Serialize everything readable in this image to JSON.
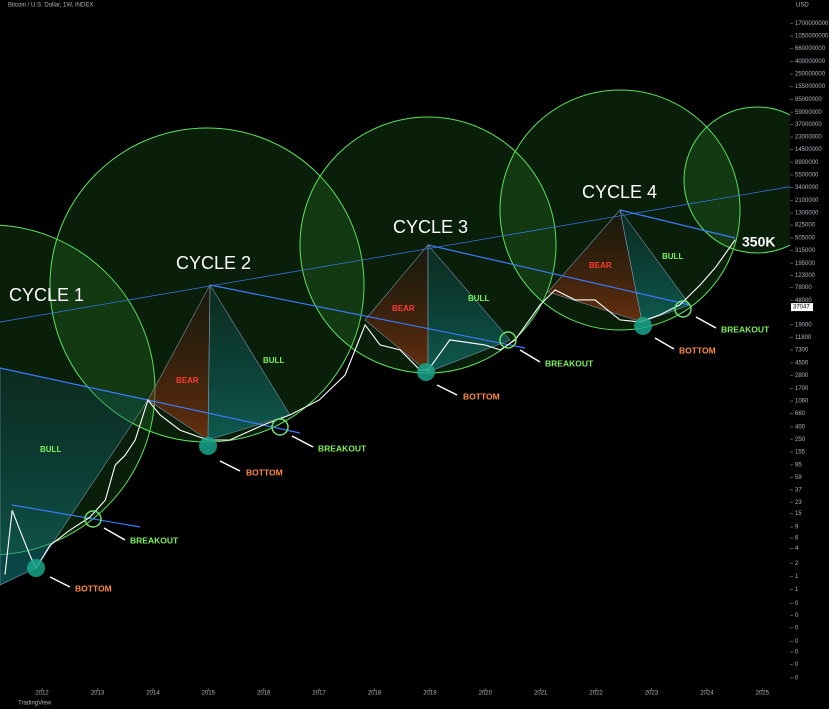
{
  "chart_data": {
    "type": "line",
    "log_scale": true,
    "currency": "USD",
    "xlim": [
      2011.24,
      2025.5
    ],
    "xticks": [
      2012,
      2013,
      2014,
      2015,
      2016,
      2017,
      2018,
      2019,
      2020,
      2021,
      2022,
      2023,
      2024,
      2025
    ],
    "ylim": [
      0.019,
      3400000000
    ],
    "yticks": [
      1700000000,
      1050000000,
      660000000,
      400000000,
      250000000,
      155000000,
      95000000,
      59000000,
      37000000,
      23000000,
      14500000,
      8900000,
      5500000,
      3400000,
      2100000,
      1300000,
      825000,
      505000,
      315000,
      195000,
      123000,
      78000,
      48000,
      19000,
      11800,
      7300,
      4500,
      2800,
      1700,
      1060,
      660,
      400,
      250,
      155,
      95,
      59,
      37,
      23,
      15,
      9,
      6,
      4,
      {
        "value": 2.3,
        "label": "2"
      },
      {
        "value": 1.4,
        "label": "1"
      },
      {
        "value": 0.85,
        "label": "1"
      },
      {
        "value": 0.5,
        "label": "0"
      },
      {
        "value": 0.32,
        "label": "0"
      },
      {
        "value": 0.2,
        "label": "0"
      },
      {
        "value": 0.12,
        "label": "0"
      },
      {
        "value": 0.08,
        "label": "0"
      },
      {
        "value": 0.05,
        "label": "0"
      },
      {
        "value": 0.03,
        "label": "0"
      }
    ],
    "series": [
      {
        "name": "Bitcoin / U.S. Dollar, 1W, INDEX",
        "color": "#ffffff",
        "x": [
          2011.33,
          2011.46,
          2011.6,
          2011.78,
          2011.89,
          2012.14,
          2012.5,
          2012.86,
          2013.14,
          2013.32,
          2013.5,
          2013.68,
          2013.91,
          2014.13,
          2014.49,
          2014.99,
          2015.39,
          2015.99,
          2016.47,
          2017.0,
          2017.47,
          2017.83,
          2018.1,
          2018.46,
          2018.82,
          2018.97,
          2019.36,
          2019.99,
          2020.27,
          2020.54,
          2020.99,
          2021.26,
          2021.62,
          2021.98,
          2022.43,
          2022.79,
          2023.15,
          2023.51,
          2023.88,
          2024.15,
          2024.51
        ],
        "values": [
          1.5,
          17,
          8,
          3.1,
          1.9,
          4.5,
          8,
          13,
          25,
          94,
          137,
          243,
          1100,
          625,
          354,
          243,
          243,
          428,
          625,
          1100,
          2840,
          18900,
          8860,
          7330,
          3440,
          3440,
          10700,
          8860,
          7330,
          10700,
          40300,
          71000,
          48700,
          48700,
          22800,
          21200,
          27600,
          40300,
          86000,
          164000,
          472000
        ]
      }
    ],
    "last_price": 37047,
    "annotations": [
      "CYCLE 1",
      "CYCLE 2",
      "CYCLE 3",
      "CYCLE 4",
      "BULL",
      "BULL",
      "BULL",
      "BULL",
      "BEAR",
      "BEAR",
      "BEAR",
      "BREAKOUT",
      "BREAKOUT",
      "BREAKOUT",
      "BREAKOUT",
      "BOTTOM",
      "BOTTOM",
      "BOTTOM",
      "BOTTOM",
      "350K"
    ],
    "footer": "TradingView"
  }
}
